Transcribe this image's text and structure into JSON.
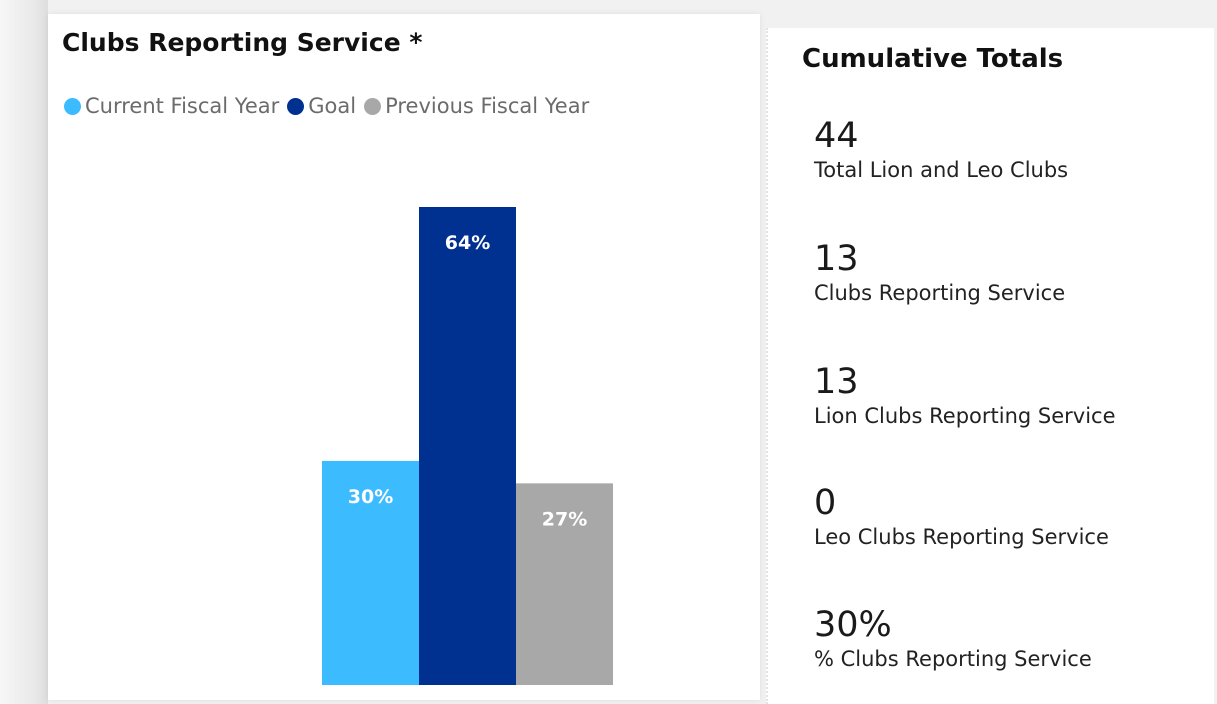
{
  "chart": {
    "title": "Clubs Reporting Service *",
    "legend": [
      {
        "label": "Current Fiscal Year",
        "color": "#3dbbff"
      },
      {
        "label": "Goal",
        "color": "#003090"
      },
      {
        "label": "Previous Fiscal Year",
        "color": "#a8a8a8"
      }
    ]
  },
  "chart_data": {
    "type": "bar",
    "title": "Clubs Reporting Service *",
    "series": [
      {
        "name": "Current Fiscal Year",
        "value": 30,
        "label": "30%",
        "color": "#3dbbff"
      },
      {
        "name": "Goal",
        "value": 64,
        "label": "64%",
        "color": "#003090"
      },
      {
        "name": "Previous Fiscal Year",
        "value": 27,
        "label": "27%",
        "color": "#a8a8a8"
      }
    ],
    "unit": "%",
    "ylim": [
      0,
      75
    ],
    "grid": false,
    "legend_position": "top-left"
  },
  "totals": {
    "title": "Cumulative Totals",
    "metrics": [
      {
        "value": "44",
        "label": "Total Lion and Leo Clubs"
      },
      {
        "value": "13",
        "label": "Clubs Reporting Service"
      },
      {
        "value": "13",
        "label": "Lion Clubs Reporting Service"
      },
      {
        "value": "0",
        "label": "Leo Clubs Reporting Service"
      },
      {
        "value": "30%",
        "label": "% Clubs Reporting Service"
      }
    ]
  }
}
